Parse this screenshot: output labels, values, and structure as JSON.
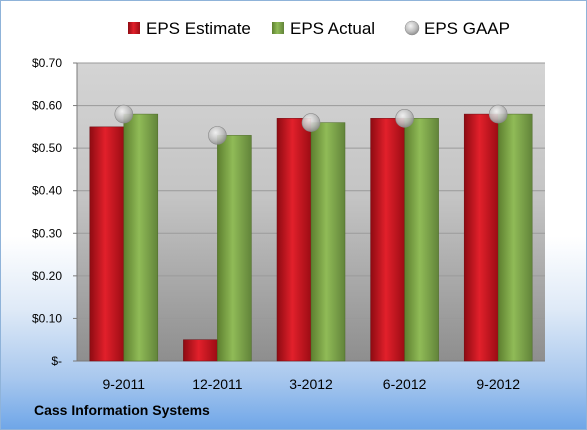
{
  "chart_data": {
    "type": "bar",
    "categories": [
      "9-2011",
      "12-2011",
      "3-2012",
      "6-2012",
      "9-2012"
    ],
    "series": [
      {
        "name": "EPS Estimate",
        "type": "bar",
        "color": "#c8102e",
        "values": [
          0.55,
          0.05,
          0.57,
          0.57,
          0.58
        ]
      },
      {
        "name": "EPS Actual",
        "type": "bar",
        "color": "#7fa94a",
        "values": [
          0.58,
          0.53,
          0.56,
          0.57,
          0.58
        ]
      },
      {
        "name": "EPS GAAP",
        "type": "marker",
        "color": "#b9b9b9",
        "values": [
          0.58,
          0.53,
          0.56,
          0.57,
          0.58
        ]
      }
    ],
    "ylim": [
      0,
      0.7
    ],
    "yticks": [
      0,
      0.1,
      0.2,
      0.3,
      0.4,
      0.5,
      0.6,
      0.7
    ],
    "ytick_labels": [
      "$-",
      "$0.10",
      "$0.20",
      "$0.30",
      "$0.40",
      "$0.50",
      "$0.60",
      "$0.70"
    ],
    "grid": true,
    "legend": "top"
  },
  "company": "Cass Information Systems"
}
